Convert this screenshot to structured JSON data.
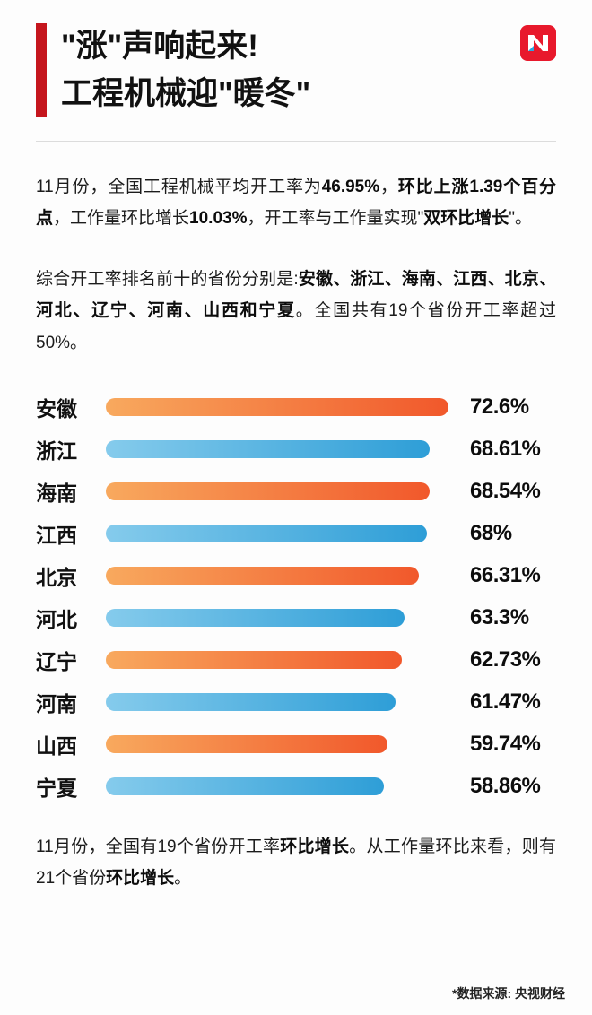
{
  "header": {
    "title_line1": "\"涨\"声响起来!",
    "title_line2": "工程机械迎\"暖冬\"",
    "accent_color": "#c5161d",
    "logo": {
      "bg_color": "#e8192c",
      "glyph_color": "#ffffff",
      "accent_color": "#2aa7e0"
    }
  },
  "paragraphs": [
    {
      "segments": [
        {
          "text": "11月份，全国工程机械平均开工率为",
          "bold": false
        },
        {
          "text": "46.95%",
          "bold": true
        },
        {
          "text": "，",
          "bold": false
        },
        {
          "text": "环比上涨1.39个百分点",
          "bold": true
        },
        {
          "text": "，工作量环比增长",
          "bold": false
        },
        {
          "text": "10.03%",
          "bold": true
        },
        {
          "text": "，开工率与工作量实现\"",
          "bold": false
        },
        {
          "text": "双环比增长",
          "bold": true
        },
        {
          "text": "\"。",
          "bold": false
        }
      ]
    },
    {
      "segments": [
        {
          "text": "综合开工率排名前十的省份分别是:",
          "bold": false
        },
        {
          "text": "安徽、浙江、海南、江西、北京、河北、辽宁、河南、山西和宁夏",
          "bold": true
        },
        {
          "text": "。全国共有19个省份开工率超过50%。",
          "bold": false
        }
      ]
    },
    {
      "segments": [
        {
          "text": "11月份，全国有19个省份开工率",
          "bold": false
        },
        {
          "text": "环比增长",
          "bold": true
        },
        {
          "text": "。从工作量环比来看，则有21个省份",
          "bold": false
        },
        {
          "text": "环比增长",
          "bold": true
        },
        {
          "text": "。",
          "bold": false
        }
      ]
    }
  ],
  "chart_data": {
    "type": "bar",
    "orientation": "horizontal",
    "title": "综合开工率排名前十的省份",
    "categories": [
      "安徽",
      "浙江",
      "海南",
      "江西",
      "北京",
      "河北",
      "辽宁",
      "河南",
      "山西",
      "宁夏"
    ],
    "values": [
      72.6,
      68.61,
      68.54,
      68,
      66.31,
      63.3,
      62.73,
      61.47,
      59.74,
      58.86
    ],
    "value_labels": [
      "72.6%",
      "68.61%",
      "68.54%",
      "68%",
      "66.31%",
      "63.3%",
      "62.73%",
      "61.47%",
      "59.74%",
      "58.86%"
    ],
    "unit": "%",
    "xlim": [
      0,
      72.6
    ],
    "scale_max": 72.6,
    "grid": false,
    "legend": false,
    "bar_color_pattern": "alternating, odd rows orange gradient, even rows blue gradient",
    "orange_gradient": [
      "#f8a95e",
      "#f1582b"
    ],
    "blue_gradient": [
      "#85cbec",
      "#2e9ed7"
    ]
  },
  "footer": {
    "source": "*数据来源: 央视财经"
  }
}
